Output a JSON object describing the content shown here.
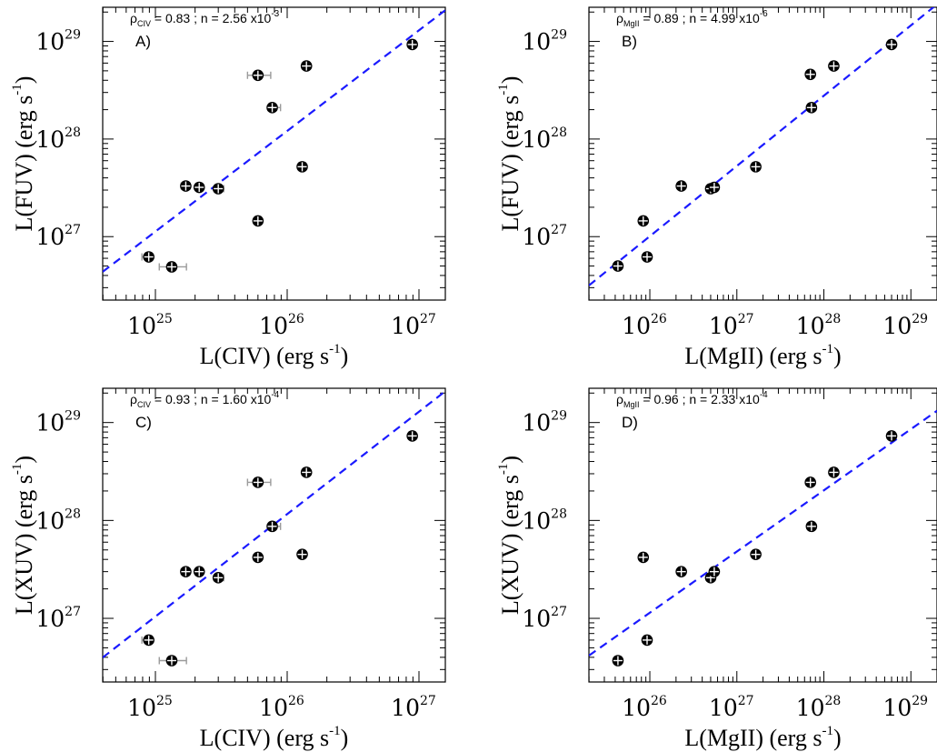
{
  "chart_data": [
    {
      "type": "scatter",
      "panel": "A)",
      "annotation": {
        "rho_sub": "CIV",
        "rho": "0.83",
        "n_mant": "2.56",
        "n_exp": "-3"
      },
      "xlabel": {
        "main": "L(CIV) (erg s",
        "sup": "-1",
        "end": ")"
      },
      "ylabel": {
        "main": "L(FUV) (erg s",
        "sup": "-1",
        "end": ")"
      },
      "xlog": true,
      "ylog": true,
      "xlim_exp": [
        24.6,
        27.2
      ],
      "ylim_exp": [
        26.35,
        29.35
      ],
      "xticks_exp": [
        25,
        26,
        27
      ],
      "yticks_exp": [
        27,
        28,
        29
      ],
      "points": [
        {
          "x": 8.9e+24,
          "y": 6.2e+26,
          "xerr": [
            1e+24,
            0
          ],
          "yerr": [
            3e+25,
            3e+25
          ]
        },
        {
          "x": 1.33e+25,
          "y": 4.9e+26,
          "xerr": [
            2.6e+24,
            3.9e+24
          ],
          "yerr": [
            3e+25,
            3e+25
          ]
        },
        {
          "x": 1.7e+25,
          "y": 3.3e+27,
          "xerr": [
            1.3e+24,
            1.3e+24
          ],
          "yerr": [
            1e+26,
            1e+26
          ]
        },
        {
          "x": 2.15e+25,
          "y": 3.2e+27,
          "xerr": [
            0,
            0
          ],
          "yerr": [
            1e+26,
            1e+26
          ]
        },
        {
          "x": 3e+25,
          "y": 3.1e+27,
          "xerr": [
            2e+24,
            3e+24
          ],
          "yerr": [
            1e+26,
            1e+26
          ]
        },
        {
          "x": 6e+25,
          "y": 1.45e+27,
          "xerr": [
            4e+24,
            4e+24
          ],
          "yerr": [
            5e+25,
            5e+25
          ]
        },
        {
          "x": 6e+25,
          "y": 4.5e+28,
          "xerr": [
            1e+25,
            1.5e+25
          ],
          "yerr": [
            1e+27,
            1e+27
          ]
        },
        {
          "x": 7.7e+25,
          "y": 2.1e+28,
          "xerr": [
            0,
            1.2e+25
          ],
          "yerr": [
            5e+26,
            5e+26
          ]
        },
        {
          "x": 1.3e+26,
          "y": 5.2e+27,
          "xerr": [
            0,
            0
          ],
          "yerr": [
            1e+26,
            1e+26
          ]
        },
        {
          "x": 1.4e+26,
          "y": 5.6e+28,
          "xerr": [
            1e+25,
            0
          ],
          "yerr": [
            1.2e+27,
            1.2e+27
          ]
        },
        {
          "x": 8.9e+26,
          "y": 9.3e+28,
          "xerr": [
            0,
            0
          ],
          "yerr": [
            1.5e+27,
            1.5e+27
          ]
        }
      ],
      "fit_line": {
        "x_exp": [
          24.6,
          27.2
        ],
        "y_exp": [
          26.64,
          29.32
        ]
      }
    },
    {
      "type": "scatter",
      "panel": "B)",
      "annotation": {
        "rho_sub": "MgII",
        "rho": "0.89",
        "n_mant": "4.99",
        "n_exp": "-6"
      },
      "xlabel": {
        "main": "L(MgII) (erg s",
        "sup": "-1",
        "end": ")"
      },
      "ylabel": {
        "main": "L(FUV) (erg s",
        "sup": "-1",
        "end": ")"
      },
      "xlog": true,
      "ylog": true,
      "xlim_exp": [
        25.3,
        29.3
      ],
      "ylim_exp": [
        26.35,
        29.35
      ],
      "xticks_exp": [
        26,
        27,
        28,
        29
      ],
      "yticks_exp": [
        27,
        28,
        29
      ],
      "points": [
        {
          "x": 4.3e+25,
          "y": 5e+26
        },
        {
          "x": 8.4e+25,
          "y": 1.45e+27
        },
        {
          "x": 9.3e+25,
          "y": 6.2e+26
        },
        {
          "x": 2.3e+26,
          "y": 3.3e+27
        },
        {
          "x": 5e+26,
          "y": 3.1e+27
        },
        {
          "x": 5.5e+26,
          "y": 3.2e+27
        },
        {
          "x": 1.65e+27,
          "y": 5.2e+27
        },
        {
          "x": 7e+27,
          "y": 4.6e+28
        },
        {
          "x": 7.2e+27,
          "y": 2.1e+28
        },
        {
          "x": 1.3e+28,
          "y": 5.6e+28
        },
        {
          "x": 6e+28,
          "y": 9.3e+28
        }
      ],
      "fit_line": {
        "x_exp": [
          25.3,
          29.3
        ],
        "y_exp": [
          26.5,
          29.38
        ]
      }
    },
    {
      "type": "scatter",
      "panel": "C)",
      "annotation": {
        "rho_sub": "CIV",
        "rho": "0.93",
        "n_mant": "1.60",
        "n_exp": "-4"
      },
      "xlabel": {
        "main": "L(CIV) (erg s",
        "sup": "-1",
        "end": ")"
      },
      "ylabel": {
        "main": "L(XUV) (erg s",
        "sup": "-1",
        "end": ")"
      },
      "xlog": true,
      "ylog": true,
      "xlim_exp": [
        24.6,
        27.2
      ],
      "ylim_exp": [
        26.35,
        29.35
      ],
      "xticks_exp": [
        25,
        26,
        27
      ],
      "yticks_exp": [
        27,
        28,
        29
      ],
      "points": [
        {
          "x": 8.9e+24,
          "y": 6e+26,
          "xerr": [
            1e+24,
            0
          ],
          "yerr": [
            2e+25,
            2e+25
          ]
        },
        {
          "x": 1.33e+25,
          "y": 3.7e+26,
          "xerr": [
            2.6e+24,
            3.9e+24
          ],
          "yerr": [
            2e+25,
            2e+25
          ]
        },
        {
          "x": 1.7e+25,
          "y": 3e+27,
          "xerr": [
            1.3e+24,
            1.3e+24
          ],
          "yerr": [
            1e+26,
            1e+26
          ]
        },
        {
          "x": 2.15e+25,
          "y": 3e+27,
          "xerr": [
            0,
            0
          ],
          "yerr": [
            1e+26,
            1e+26
          ]
        },
        {
          "x": 3e+25,
          "y": 2.6e+27,
          "xerr": [
            2e+24,
            3e+24
          ],
          "yerr": [
            1e+26,
            1e+26
          ]
        },
        {
          "x": 6e+25,
          "y": 4.2e+27,
          "xerr": [
            4e+24,
            4e+24
          ],
          "yerr": [
            1e+26,
            1e+26
          ]
        },
        {
          "x": 6e+25,
          "y": 2.45e+28,
          "xerr": [
            1e+25,
            1.5e+25
          ],
          "yerr": [
            6e+26,
            6e+26
          ]
        },
        {
          "x": 7.7e+25,
          "y": 8.7e+27,
          "xerr": [
            0,
            1.2e+25
          ],
          "yerr": [
            2e+26,
            2e+26
          ]
        },
        {
          "x": 1.3e+26,
          "y": 4.5e+27,
          "xerr": [
            0,
            0
          ],
          "yerr": [
            1e+26,
            1e+26
          ]
        },
        {
          "x": 1.4e+26,
          "y": 3.1e+28,
          "xerr": [
            1e+25,
            0
          ],
          "yerr": [
            1e+27,
            1e+27
          ]
        },
        {
          "x": 8.9e+26,
          "y": 7.3e+28,
          "xerr": [
            0,
            0
          ],
          "yerr": [
            1.5e+27,
            1.5e+27
          ]
        }
      ],
      "fit_line": {
        "x_exp": [
          24.6,
          27.2
        ],
        "y_exp": [
          26.6,
          29.32
        ]
      }
    },
    {
      "type": "scatter",
      "panel": "D)",
      "annotation": {
        "rho_sub": "MgII",
        "rho": "0.96",
        "n_mant": "2.33",
        "n_exp": "-4"
      },
      "xlabel": {
        "main": "L(MgII) (erg s",
        "sup": "-1",
        "end": ")"
      },
      "ylabel": {
        "main": "L(XUV) (erg s",
        "sup": "-1",
        "end": ")"
      },
      "xlog": true,
      "ylog": true,
      "xlim_exp": [
        25.3,
        29.3
      ],
      "ylim_exp": [
        26.35,
        29.35
      ],
      "xticks_exp": [
        26,
        27,
        28,
        29
      ],
      "yticks_exp": [
        27,
        28,
        29
      ],
      "points": [
        {
          "x": 4.3e+25,
          "y": 3.7e+26
        },
        {
          "x": 8.4e+25,
          "y": 4.2e+27
        },
        {
          "x": 9.3e+25,
          "y": 6e+26
        },
        {
          "x": 2.3e+26,
          "y": 3e+27
        },
        {
          "x": 5e+26,
          "y": 2.6e+27
        },
        {
          "x": 5.5e+26,
          "y": 3e+27
        },
        {
          "x": 1.65e+27,
          "y": 4.5e+27
        },
        {
          "x": 7e+27,
          "y": 2.45e+28
        },
        {
          "x": 7.2e+27,
          "y": 8.7e+27
        },
        {
          "x": 1.3e+28,
          "y": 3.1e+28
        },
        {
          "x": 6e+28,
          "y": 7.3e+28
        }
      ],
      "fit_line": {
        "x_exp": [
          25.3,
          29.3
        ],
        "y_exp": [
          26.62,
          29.12
        ]
      }
    }
  ],
  "style": {
    "fit_color": "#1a1aff",
    "marker_fill": "#000000",
    "marker_cross": "#ffffff",
    "errbar_color": "#9a9a9a"
  }
}
